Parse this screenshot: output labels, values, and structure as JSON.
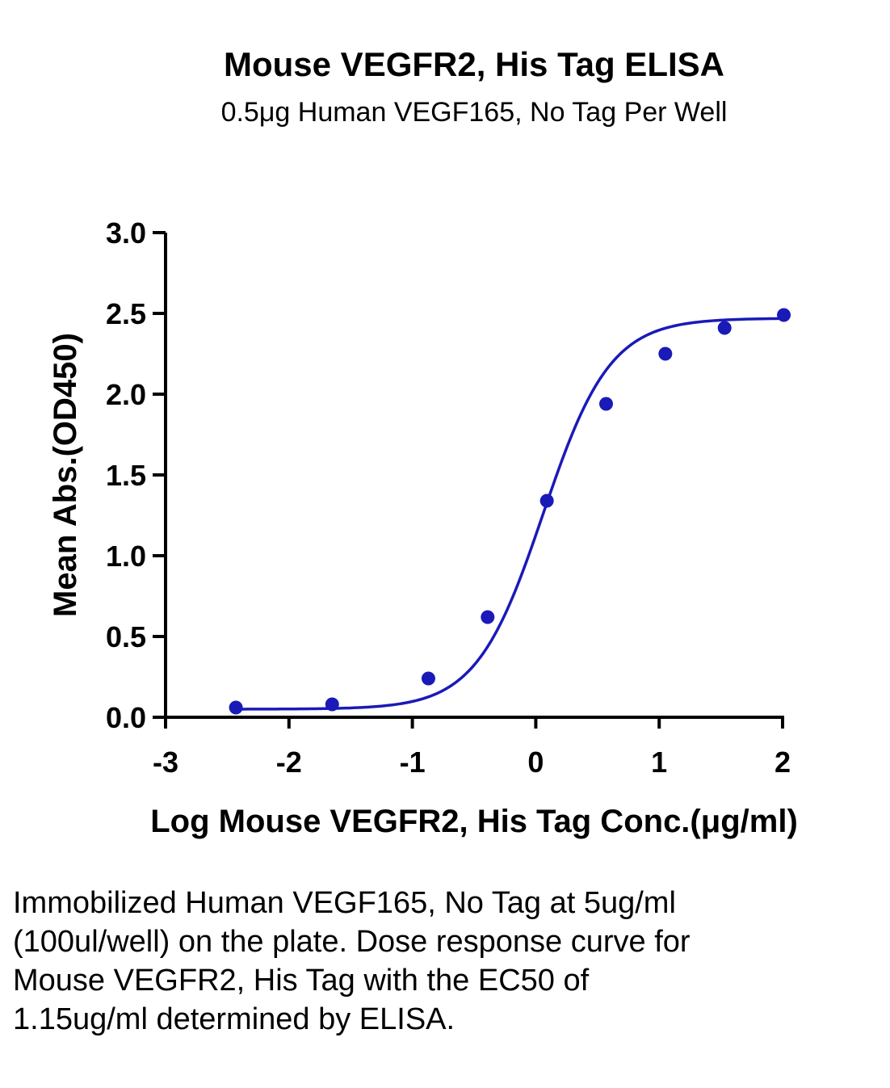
{
  "chart_data": {
    "type": "scatter",
    "title": "Mouse VEGFR2, His Tag ELISA",
    "subtitle": "0.5μg Human VEGF165, No Tag Per Well",
    "xlabel": "Log Mouse VEGFR2, His Tag Conc.(μg/ml)",
    "ylabel": "Mean Abs.(OD450)",
    "xlim": [
      -3,
      2
    ],
    "ylim": [
      0,
      3.0
    ],
    "x_ticks": [
      -3,
      -2,
      -1,
      0,
      1,
      2
    ],
    "x_tick_labels": [
      "-3",
      "-2",
      "-1",
      "0",
      "1",
      "2"
    ],
    "y_ticks": [
      0,
      0.5,
      1.0,
      1.5,
      2.0,
      2.5,
      3.0
    ],
    "y_tick_labels": [
      "0.0",
      "0.5",
      "1.0",
      "1.5",
      "2.0",
      "2.5",
      "3.0"
    ],
    "grid": false,
    "color": "#1a1ab8",
    "series": [
      {
        "points": [
          {
            "x": -2.43,
            "y": 0.06
          },
          {
            "x": -1.65,
            "y": 0.08
          },
          {
            "x": -0.87,
            "y": 0.24
          },
          {
            "x": -0.39,
            "y": 0.62
          },
          {
            "x": 0.09,
            "y": 1.34
          },
          {
            "x": 0.57,
            "y": 1.94
          },
          {
            "x": 1.05,
            "y": 2.25
          },
          {
            "x": 1.53,
            "y": 2.41
          },
          {
            "x": 2.01,
            "y": 2.49
          }
        ],
        "fit": {
          "model": "4PL",
          "bottom": 0.05,
          "top": 2.47,
          "logEC50": 0.06,
          "hill": 1.6
        }
      }
    ]
  },
  "caption": "Immobilized Human VEGF165, No Tag at 5ug/ml (100ul/well) on the plate. Dose response curve for Mouse VEGFR2, His Tag with the EC50 of 1.15ug/ml determined by ELISA."
}
